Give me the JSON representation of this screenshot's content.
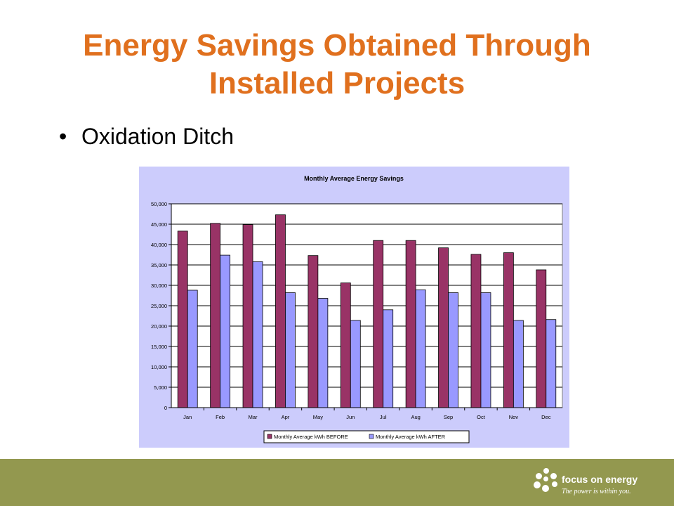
{
  "slide": {
    "title_line1": "Energy Savings Obtained Through",
    "title_line2": "Installed Projects",
    "bullet": "Oxidation Ditch"
  },
  "brand": {
    "name": "focus on energy",
    "tagline": "The power is within you."
  },
  "colors": {
    "title": "#e0701e",
    "chart_background": "#ccccfc",
    "before": "#993366",
    "after": "#9999ff",
    "footer": "#93984f"
  },
  "chart_data": {
    "type": "bar",
    "title": "Monthly Average Energy Savings",
    "categories": [
      "Jan",
      "Feb",
      "Mar",
      "Apr",
      "May",
      "Jun",
      "Jul",
      "Aug",
      "Sep",
      "Oct",
      "Nov",
      "Dec"
    ],
    "series": [
      {
        "name": "Monthly Average kWh BEFORE",
        "values": [
          43300,
          45200,
          44900,
          47300,
          37300,
          30600,
          41000,
          41000,
          39200,
          37600,
          38000,
          33800
        ]
      },
      {
        "name": "Monthly Average kWh AFTER",
        "values": [
          28800,
          37400,
          35800,
          28200,
          26800,
          21400,
          24000,
          28900,
          28200,
          28200,
          21400,
          21600
        ]
      }
    ],
    "yticks": [
      "0",
      "5,000",
      "10,000",
      "15,000",
      "20,000",
      "25,000",
      "30,000",
      "35,000",
      "40,000",
      "45,000",
      "50,000"
    ],
    "ylim": [
      0,
      50000
    ],
    "grid": true,
    "legend": "bottom"
  }
}
